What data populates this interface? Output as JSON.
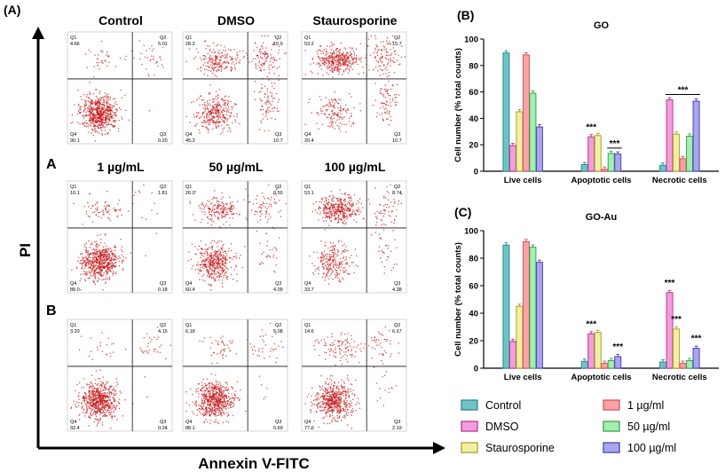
{
  "figure": {
    "panel_a": "(A)",
    "panel_b": "(B)",
    "panel_c": "(C)",
    "row_label_a": "A",
    "row_label_b": "B",
    "y_axis_label": "PI",
    "x_axis_label": "Annexin V-FITC"
  },
  "flow_plots": {
    "column_titles_top": [
      "Control",
      "DMSO",
      "Staurosporine"
    ],
    "column_titles_mid": [
      "1 µg/mL",
      "50 µg/mL",
      "100 µg/mL"
    ],
    "rows": [
      [
        {
          "q1": "4.66",
          "q2": "5.01",
          "q3": "0.20",
          "q4": "90.1"
        },
        {
          "q1": "28.2",
          "q2": "15.9",
          "q3": "10.7",
          "q4": "45.3"
        },
        {
          "q1": "53.2",
          "q2": "15.7",
          "q3": "10.7",
          "q4": "20.4"
        }
      ],
      [
        {
          "q1": "10.1",
          "q2": "1.81",
          "q3": "0.18",
          "q4": "88.0"
        },
        {
          "q1": "26.0",
          "q2": "9.50",
          "q3": "4.09",
          "q4": "60.4"
        },
        {
          "q1": "53.1",
          "q2": "8.74",
          "q3": "4.38",
          "q4": "33.7"
        }
      ],
      [
        {
          "q1": "3.20",
          "q2": "4.15",
          "q3": "0.24",
          "q4": "92.4"
        },
        {
          "q1": "6.18",
          "q2": "5.08",
          "q3": "0.69",
          "q4": "88.1"
        },
        {
          "q1": "14.6",
          "q2": "6.17",
          "q3": "2.19",
          "q4": "77.0"
        }
      ]
    ]
  },
  "legend": {
    "items": [
      {
        "label": "Control",
        "color": "#6fc3c4"
      },
      {
        "label": "DMSO",
        "color": "#f29ed8"
      },
      {
        "label": "Staurosporine",
        "color": "#f2f0a0"
      },
      {
        "label": "1 µg/ml",
        "color": "#f7a3a8"
      },
      {
        "label": "50 µg/ml",
        "color": "#a3efb0"
      },
      {
        "label": "100 µg/ml",
        "color": "#a9a6ee"
      }
    ]
  },
  "chart_data": [
    {
      "type": "bar",
      "title": "GO",
      "ylabel": "Cell number (% total counts)",
      "xlabel": "",
      "ylim": [
        0,
        100
      ],
      "yticks": [
        0,
        20,
        40,
        60,
        80,
        100
      ],
      "categories": [
        "Live cells",
        "Apoptotic cells",
        "Necrotic cells"
      ],
      "series": [
        {
          "name": "Control",
          "values": [
            89.5,
            5.0,
            4.5
          ]
        },
        {
          "name": "DMSO",
          "values": [
            19.5,
            26.0,
            54.0
          ]
        },
        {
          "name": "Staurosporine",
          "values": [
            45.0,
            27.0,
            28.0
          ]
        },
        {
          "name": "1 µg/ml",
          "values": [
            88.0,
            1.5,
            9.5
          ]
        },
        {
          "name": "50 µg/ml",
          "values": [
            59.0,
            13.5,
            26.5
          ]
        },
        {
          "name": "100 µg/ml",
          "values": [
            33.5,
            13.0,
            53.0
          ]
        }
      ],
      "annotations": [
        {
          "text": "***",
          "category": 1,
          "series": 1,
          "bar_over": [
            1
          ]
        },
        {
          "text": "***",
          "category": 1,
          "series": 4,
          "bar_over": [
            4,
            5
          ]
        },
        {
          "text": "***",
          "category": 2,
          "series": 1,
          "bar_over": [
            1,
            5
          ]
        }
      ]
    },
    {
      "type": "bar",
      "title": "GO-Au",
      "ylabel": "Cell number (% total counts)",
      "xlabel": "",
      "ylim": [
        0,
        100
      ],
      "yticks": [
        0,
        20,
        40,
        60,
        80,
        100
      ],
      "categories": [
        "Live cells",
        "Apoptotic cells",
        "Necrotic cells"
      ],
      "series": [
        {
          "name": "Control",
          "values": [
            89.5,
            5.0,
            4.5
          ]
        },
        {
          "name": "DMSO",
          "values": [
            19.5,
            25.0,
            55.0
          ]
        },
        {
          "name": "Staurosporine",
          "values": [
            45.0,
            26.0,
            28.5
          ]
        },
        {
          "name": "1 µg/ml",
          "values": [
            92.0,
            3.5,
            3.5
          ]
        },
        {
          "name": "50 µg/ml",
          "values": [
            88.0,
            5.5,
            5.5
          ]
        },
        {
          "name": "100 µg/ml",
          "values": [
            77.0,
            8.5,
            14.5
          ]
        }
      ],
      "annotations": [
        {
          "text": "***",
          "category": 1,
          "series": 1,
          "bar_over": [
            1
          ]
        },
        {
          "text": "***",
          "category": 1,
          "series": 5,
          "bar_over": [
            5
          ]
        },
        {
          "text": "***",
          "category": 2,
          "series": 1,
          "bar_over": [
            1
          ]
        },
        {
          "text": "***",
          "category": 2,
          "series": 2,
          "bar_over": [
            2
          ]
        },
        {
          "text": "***",
          "category": 2,
          "series": 5,
          "bar_over": [
            5
          ]
        }
      ]
    }
  ]
}
